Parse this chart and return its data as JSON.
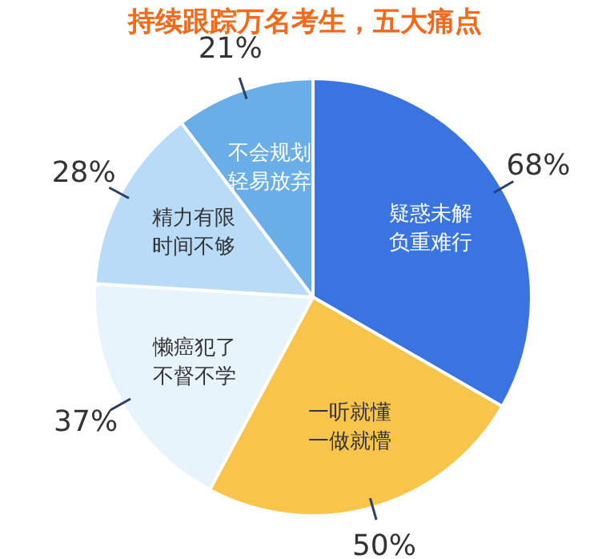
{
  "chart_data": {
    "type": "pie",
    "title": "持续跟踪万名考生，五大痛点",
    "categories": [
      "疑惑未解负重难行",
      "一听就懂一做就懵",
      "懒癌犯了不督不学",
      "精力有限时间不够",
      "不会规划轻易放弃"
    ],
    "values": [
      68,
      50,
      37,
      28,
      21
    ],
    "value_labels": [
      "68%",
      "50%",
      "37%",
      "28%",
      "21%"
    ],
    "colors": [
      "#3a74e0",
      "#f8c54a",
      "#e8f4fc",
      "#b8dcf7",
      "#6aaee8"
    ]
  }
}
